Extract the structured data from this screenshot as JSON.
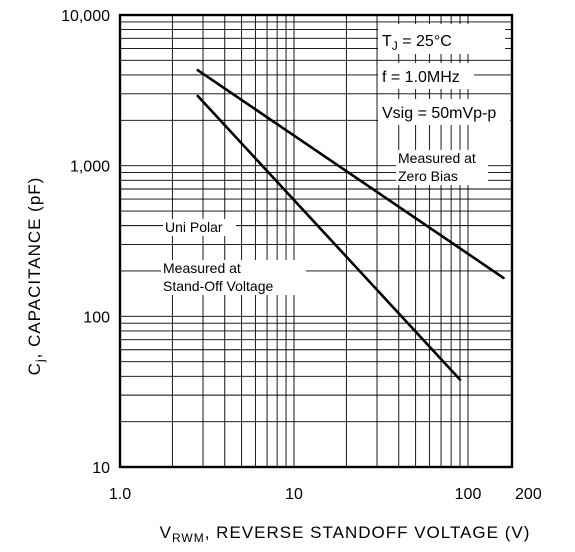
{
  "chart_data": {
    "type": "line",
    "x_scale": "log",
    "y_scale": "log",
    "xlim": [
      1.0,
      200
    ],
    "ylim": [
      10,
      10000
    ],
    "x_tick_labels": [
      {
        "value": 1.0,
        "label": "1.0"
      },
      {
        "value": 10,
        "label": "10"
      },
      {
        "value": 100,
        "label": "100"
      },
      {
        "value": 200,
        "label": "200"
      }
    ],
    "y_tick_labels": [
      {
        "value": 10,
        "label": "10"
      },
      {
        "value": 100,
        "label": "100"
      },
      {
        "value": 1000,
        "label": "1,000"
      },
      {
        "value": 10000,
        "label": "10,000"
      }
    ],
    "xlabel_main": "V",
    "xlabel_sub": "RWM",
    "xlabel_rest": ", REVERSE STANDOFF VOLTAGE (V)",
    "ylabel_main": "C",
    "ylabel_sub": "j",
    "ylabel_rest": ", CAPACITANCE (pF)",
    "conditions": {
      "line1_main": "T",
      "line1_sub": "J",
      "line1_rest": " = 25°C",
      "line2": "f = 1.0MHz",
      "line3": "Vsig = 50mVp-p"
    },
    "annotations": {
      "zero_bias_1": "Measured at",
      "zero_bias_2": "Zero Bias",
      "unipolar": "Uni Polar",
      "standoff_1": "Measured at",
      "standoff_2": "Stand-Off Voltage"
    },
    "series": [
      {
        "x": [
          2.8,
          160
        ],
        "y": [
          4300,
          180
        ]
      },
      {
        "x": [
          2.8,
          90
        ],
        "y": [
          2900,
          38
        ]
      }
    ],
    "grid": true
  }
}
